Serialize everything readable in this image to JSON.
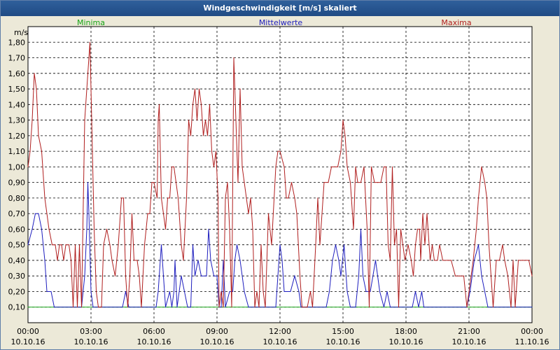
{
  "window": {
    "title": "Windgeschwindigkeit [m/s] skaliert"
  },
  "chart_data": {
    "type": "line",
    "title": "Windgeschwindigkeit [m/s] skaliert",
    "ylabel": "m/s",
    "ylim": [
      0,
      1.9
    ],
    "grid": true,
    "legend_placement": "top",
    "y_ticks": [
      "1,80",
      "1,70",
      "1,60",
      "1,50",
      "1,40",
      "1,30",
      "1,20",
      "1,10",
      "1,00",
      "0,90",
      "0,80",
      "0,70",
      "0,60",
      "0,50",
      "0,40",
      "0,30",
      "0,20",
      "0,10"
    ],
    "x_ticks": [
      {
        "time": "00:00",
        "date": "10.10.16"
      },
      {
        "time": "03:00",
        "date": "10.10.16"
      },
      {
        "time": "06:00",
        "date": "10.10.16"
      },
      {
        "time": "09:00",
        "date": "10.10.16"
      },
      {
        "time": "12:00",
        "date": "10.10.16"
      },
      {
        "time": "15:00",
        "date": "10.10.16"
      },
      {
        "time": "18:00",
        "date": "10.10.16"
      },
      {
        "time": "21:00",
        "date": "10.10.16"
      },
      {
        "time": "00:00",
        "date": "11.10.16"
      }
    ],
    "x_range_hours": [
      0,
      24
    ],
    "series": [
      {
        "name": "Minima",
        "color": "#17a417",
        "points": [
          [
            0,
            0.1
          ],
          [
            24,
            0.1
          ]
        ]
      },
      {
        "name": "Mittelwerte",
        "color": "#1d1dbe",
        "points": [
          [
            0,
            0.5
          ],
          [
            0.2,
            0.6
          ],
          [
            0.35,
            0.7
          ],
          [
            0.5,
            0.7
          ],
          [
            0.65,
            0.6
          ],
          [
            0.8,
            0.4
          ],
          [
            0.9,
            0.2
          ],
          [
            1.1,
            0.2
          ],
          [
            1.25,
            0.1
          ],
          [
            2.55,
            0.1
          ],
          [
            2.7,
            0.3
          ],
          [
            2.8,
            0.6
          ],
          [
            2.85,
            0.9
          ],
          [
            2.9,
            0.7
          ],
          [
            3.0,
            0.2
          ],
          [
            3.1,
            0.1
          ],
          [
            4.5,
            0.1
          ],
          [
            4.65,
            0.2
          ],
          [
            4.8,
            0.1
          ],
          [
            6.1,
            0.1
          ],
          [
            6.2,
            0.2
          ],
          [
            6.35,
            0.5
          ],
          [
            6.45,
            0.3
          ],
          [
            6.55,
            0.1
          ],
          [
            6.75,
            0.2
          ],
          [
            6.85,
            0.1
          ],
          [
            6.95,
            0.2
          ],
          [
            7.0,
            0.4
          ],
          [
            7.1,
            0.1
          ],
          [
            7.3,
            0.3
          ],
          [
            7.45,
            0.2
          ],
          [
            7.6,
            0.1
          ],
          [
            7.75,
            0.1
          ],
          [
            7.85,
            0.5
          ],
          [
            7.95,
            0.3
          ],
          [
            8.1,
            0.4
          ],
          [
            8.25,
            0.3
          ],
          [
            8.5,
            0.3
          ],
          [
            8.6,
            0.6
          ],
          [
            8.7,
            0.4
          ],
          [
            8.85,
            0.3
          ],
          [
            9.0,
            0.3
          ],
          [
            9.1,
            0.1
          ],
          [
            9.2,
            0.1
          ],
          [
            9.3,
            0.4
          ],
          [
            9.4,
            0.1
          ],
          [
            9.6,
            0.2
          ],
          [
            9.75,
            0.2
          ],
          [
            9.85,
            0.4
          ],
          [
            9.95,
            0.5
          ],
          [
            10.1,
            0.4
          ],
          [
            10.3,
            0.2
          ],
          [
            10.5,
            0.1
          ],
          [
            11.8,
            0.1
          ],
          [
            11.9,
            0.3
          ],
          [
            12.0,
            0.5
          ],
          [
            12.1,
            0.4
          ],
          [
            12.2,
            0.2
          ],
          [
            12.5,
            0.2
          ],
          [
            12.7,
            0.3
          ],
          [
            12.9,
            0.2
          ],
          [
            13.0,
            0.1
          ],
          [
            14.2,
            0.1
          ],
          [
            14.35,
            0.2
          ],
          [
            14.5,
            0.4
          ],
          [
            14.65,
            0.5
          ],
          [
            14.8,
            0.4
          ],
          [
            14.9,
            0.3
          ],
          [
            15.05,
            0.5
          ],
          [
            15.2,
            0.2
          ],
          [
            15.35,
            0.1
          ],
          [
            15.6,
            0.1
          ],
          [
            15.75,
            0.3
          ],
          [
            15.85,
            0.6
          ],
          [
            15.95,
            0.3
          ],
          [
            16.1,
            0.2
          ],
          [
            16.3,
            0.2
          ],
          [
            16.55,
            0.4
          ],
          [
            16.75,
            0.2
          ],
          [
            16.95,
            0.1
          ],
          [
            17.1,
            0.2
          ],
          [
            17.25,
            0.1
          ],
          [
            18.3,
            0.1
          ],
          [
            18.45,
            0.2
          ],
          [
            18.6,
            0.1
          ],
          [
            18.75,
            0.2
          ],
          [
            18.85,
            0.1
          ],
          [
            20.9,
            0.1
          ],
          [
            21.05,
            0.2
          ],
          [
            21.25,
            0.4
          ],
          [
            21.45,
            0.5
          ],
          [
            21.6,
            0.3
          ],
          [
            21.75,
            0.2
          ],
          [
            21.9,
            0.1
          ],
          [
            24,
            0.1
          ]
        ]
      },
      {
        "name": "Maxima",
        "color": "#b01e1e",
        "points": [
          [
            0,
            1.0
          ],
          [
            0.1,
            1.1
          ],
          [
            0.2,
            1.3
          ],
          [
            0.3,
            1.6
          ],
          [
            0.4,
            1.5
          ],
          [
            0.5,
            1.2
          ],
          [
            0.65,
            1.1
          ],
          [
            0.8,
            0.8
          ],
          [
            0.9,
            0.7
          ],
          [
            1.0,
            0.6
          ],
          [
            1.15,
            0.5
          ],
          [
            1.3,
            0.5
          ],
          [
            1.4,
            0.4
          ],
          [
            1.5,
            0.5
          ],
          [
            1.6,
            0.5
          ],
          [
            1.7,
            0.4
          ],
          [
            1.8,
            0.5
          ],
          [
            1.95,
            0.5
          ],
          [
            2.05,
            0.4
          ],
          [
            2.15,
            0.1
          ],
          [
            2.25,
            0.5
          ],
          [
            2.35,
            0.1
          ],
          [
            2.45,
            0.5
          ],
          [
            2.55,
            0.1
          ],
          [
            2.7,
            1.3
          ],
          [
            2.8,
            1.5
          ],
          [
            2.95,
            1.8
          ],
          [
            3.05,
            1.2
          ],
          [
            3.15,
            0.6
          ],
          [
            3.25,
            0.2
          ],
          [
            3.35,
            0.1
          ],
          [
            3.5,
            0.1
          ],
          [
            3.6,
            0.5
          ],
          [
            3.75,
            0.6
          ],
          [
            3.9,
            0.5
          ],
          [
            4.0,
            0.4
          ],
          [
            4.15,
            0.3
          ],
          [
            4.3,
            0.5
          ],
          [
            4.45,
            0.8
          ],
          [
            4.55,
            0.8
          ],
          [
            4.65,
            0.3
          ],
          [
            4.75,
            0.1
          ],
          [
            4.85,
            0.3
          ],
          [
            4.95,
            0.7
          ],
          [
            5.05,
            0.4
          ],
          [
            5.2,
            0.4
          ],
          [
            5.3,
            0.3
          ],
          [
            5.4,
            0.1
          ],
          [
            5.55,
            0.5
          ],
          [
            5.7,
            0.7
          ],
          [
            5.8,
            0.7
          ],
          [
            5.9,
            0.9
          ],
          [
            6.0,
            0.9
          ],
          [
            6.15,
            0.8
          ],
          [
            6.2,
            1.3
          ],
          [
            6.25,
            1.4
          ],
          [
            6.35,
            0.8
          ],
          [
            6.45,
            0.7
          ],
          [
            6.55,
            0.6
          ],
          [
            6.65,
            0.8
          ],
          [
            6.75,
            0.8
          ],
          [
            6.85,
            1.0
          ],
          [
            6.95,
            1.0
          ],
          [
            7.05,
            0.9
          ],
          [
            7.15,
            0.8
          ],
          [
            7.3,
            0.5
          ],
          [
            7.4,
            0.4
          ],
          [
            7.55,
            0.8
          ],
          [
            7.65,
            1.3
          ],
          [
            7.75,
            1.2
          ],
          [
            7.85,
            1.4
          ],
          [
            7.95,
            1.5
          ],
          [
            8.05,
            1.3
          ],
          [
            8.15,
            1.5
          ],
          [
            8.25,
            1.4
          ],
          [
            8.35,
            1.2
          ],
          [
            8.45,
            1.3
          ],
          [
            8.55,
            1.2
          ],
          [
            8.65,
            1.4
          ],
          [
            8.75,
            1.1
          ],
          [
            8.85,
            1.0
          ],
          [
            8.95,
            1.1
          ],
          [
            9.05,
            0.8
          ],
          [
            9.1,
            0.1
          ],
          [
            9.2,
            0.2
          ],
          [
            9.3,
            0.1
          ],
          [
            9.4,
            0.8
          ],
          [
            9.5,
            0.9
          ],
          [
            9.6,
            0.6
          ],
          [
            9.7,
            0.1
          ],
          [
            9.8,
            1.7
          ],
          [
            9.9,
            1.3
          ],
          [
            10.0,
            0.9
          ],
          [
            10.1,
            1.5
          ],
          [
            10.2,
            1.0
          ],
          [
            10.3,
            0.9
          ],
          [
            10.4,
            0.8
          ],
          [
            10.5,
            0.7
          ],
          [
            10.6,
            0.8
          ],
          [
            10.7,
            0.6
          ],
          [
            10.8,
            0.1
          ],
          [
            10.9,
            0.2
          ],
          [
            11.0,
            0.1
          ],
          [
            11.1,
            0.5
          ],
          [
            11.2,
            0.2
          ],
          [
            11.3,
            0.1
          ],
          [
            11.45,
            0.7
          ],
          [
            11.6,
            0.5
          ],
          [
            11.8,
            1.0
          ],
          [
            11.9,
            1.1
          ],
          [
            12.0,
            1.1
          ],
          [
            12.2,
            1.0
          ],
          [
            12.3,
            0.8
          ],
          [
            12.4,
            0.8
          ],
          [
            12.55,
            0.9
          ],
          [
            12.7,
            0.8
          ],
          [
            12.8,
            0.7
          ],
          [
            12.95,
            0.3
          ],
          [
            13.05,
            0.1
          ],
          [
            13.3,
            0.1
          ],
          [
            13.45,
            0.2
          ],
          [
            13.55,
            0.1
          ],
          [
            13.7,
            0.5
          ],
          [
            13.8,
            0.8
          ],
          [
            13.9,
            0.5
          ],
          [
            14.1,
            0.9
          ],
          [
            14.3,
            0.9
          ],
          [
            14.45,
            1.0
          ],
          [
            14.6,
            1.0
          ],
          [
            14.75,
            1.0
          ],
          [
            14.9,
            1.1
          ],
          [
            15.0,
            1.3
          ],
          [
            15.1,
            1.2
          ],
          [
            15.2,
            1.0
          ],
          [
            15.35,
            0.9
          ],
          [
            15.5,
            0.6
          ],
          [
            15.6,
            1.0
          ],
          [
            15.7,
            0.9
          ],
          [
            15.85,
            0.9
          ],
          [
            16.0,
            1.0
          ],
          [
            16.15,
            0.6
          ],
          [
            16.25,
            0.1
          ],
          [
            16.35,
            1.0
          ],
          [
            16.5,
            0.9
          ],
          [
            16.65,
            0.9
          ],
          [
            16.8,
            0.9
          ],
          [
            16.95,
            1.0
          ],
          [
            17.05,
            1.0
          ],
          [
            17.15,
            0.5
          ],
          [
            17.25,
            0.4
          ],
          [
            17.35,
            1.0
          ],
          [
            17.45,
            0.5
          ],
          [
            17.55,
            0.6
          ],
          [
            17.65,
            0.1
          ],
          [
            17.75,
            0.6
          ],
          [
            17.85,
            0.5
          ],
          [
            17.95,
            0.4
          ],
          [
            18.1,
            0.5
          ],
          [
            18.25,
            0.4
          ],
          [
            18.35,
            0.3
          ],
          [
            18.45,
            0.5
          ],
          [
            18.55,
            0.6
          ],
          [
            18.65,
            0.6
          ],
          [
            18.7,
            0.4
          ],
          [
            18.8,
            0.7
          ],
          [
            18.9,
            0.5
          ],
          [
            19.0,
            0.7
          ],
          [
            19.15,
            0.4
          ],
          [
            19.25,
            0.5
          ],
          [
            19.35,
            0.4
          ],
          [
            19.5,
            0.4
          ],
          [
            19.6,
            0.5
          ],
          [
            19.75,
            0.4
          ],
          [
            20.0,
            0.4
          ],
          [
            20.15,
            0.4
          ],
          [
            20.35,
            0.3
          ],
          [
            20.55,
            0.3
          ],
          [
            20.75,
            0.3
          ],
          [
            20.9,
            0.1
          ],
          [
            21.1,
            0.3
          ],
          [
            21.2,
            0.4
          ],
          [
            21.35,
            0.6
          ],
          [
            21.45,
            0.8
          ],
          [
            21.6,
            1.0
          ],
          [
            21.75,
            0.9
          ],
          [
            21.85,
            0.8
          ],
          [
            21.95,
            0.5
          ],
          [
            22.05,
            0.3
          ],
          [
            22.15,
            0.1
          ],
          [
            22.3,
            0.4
          ],
          [
            22.45,
            0.4
          ],
          [
            22.6,
            0.5
          ],
          [
            22.7,
            0.4
          ],
          [
            22.85,
            0.3
          ],
          [
            23.0,
            0.1
          ],
          [
            23.1,
            0.4
          ],
          [
            23.2,
            0.1
          ],
          [
            23.35,
            0.4
          ],
          [
            23.55,
            0.4
          ],
          [
            23.7,
            0.4
          ],
          [
            23.85,
            0.4
          ],
          [
            24.0,
            0.3
          ]
        ]
      }
    ]
  }
}
